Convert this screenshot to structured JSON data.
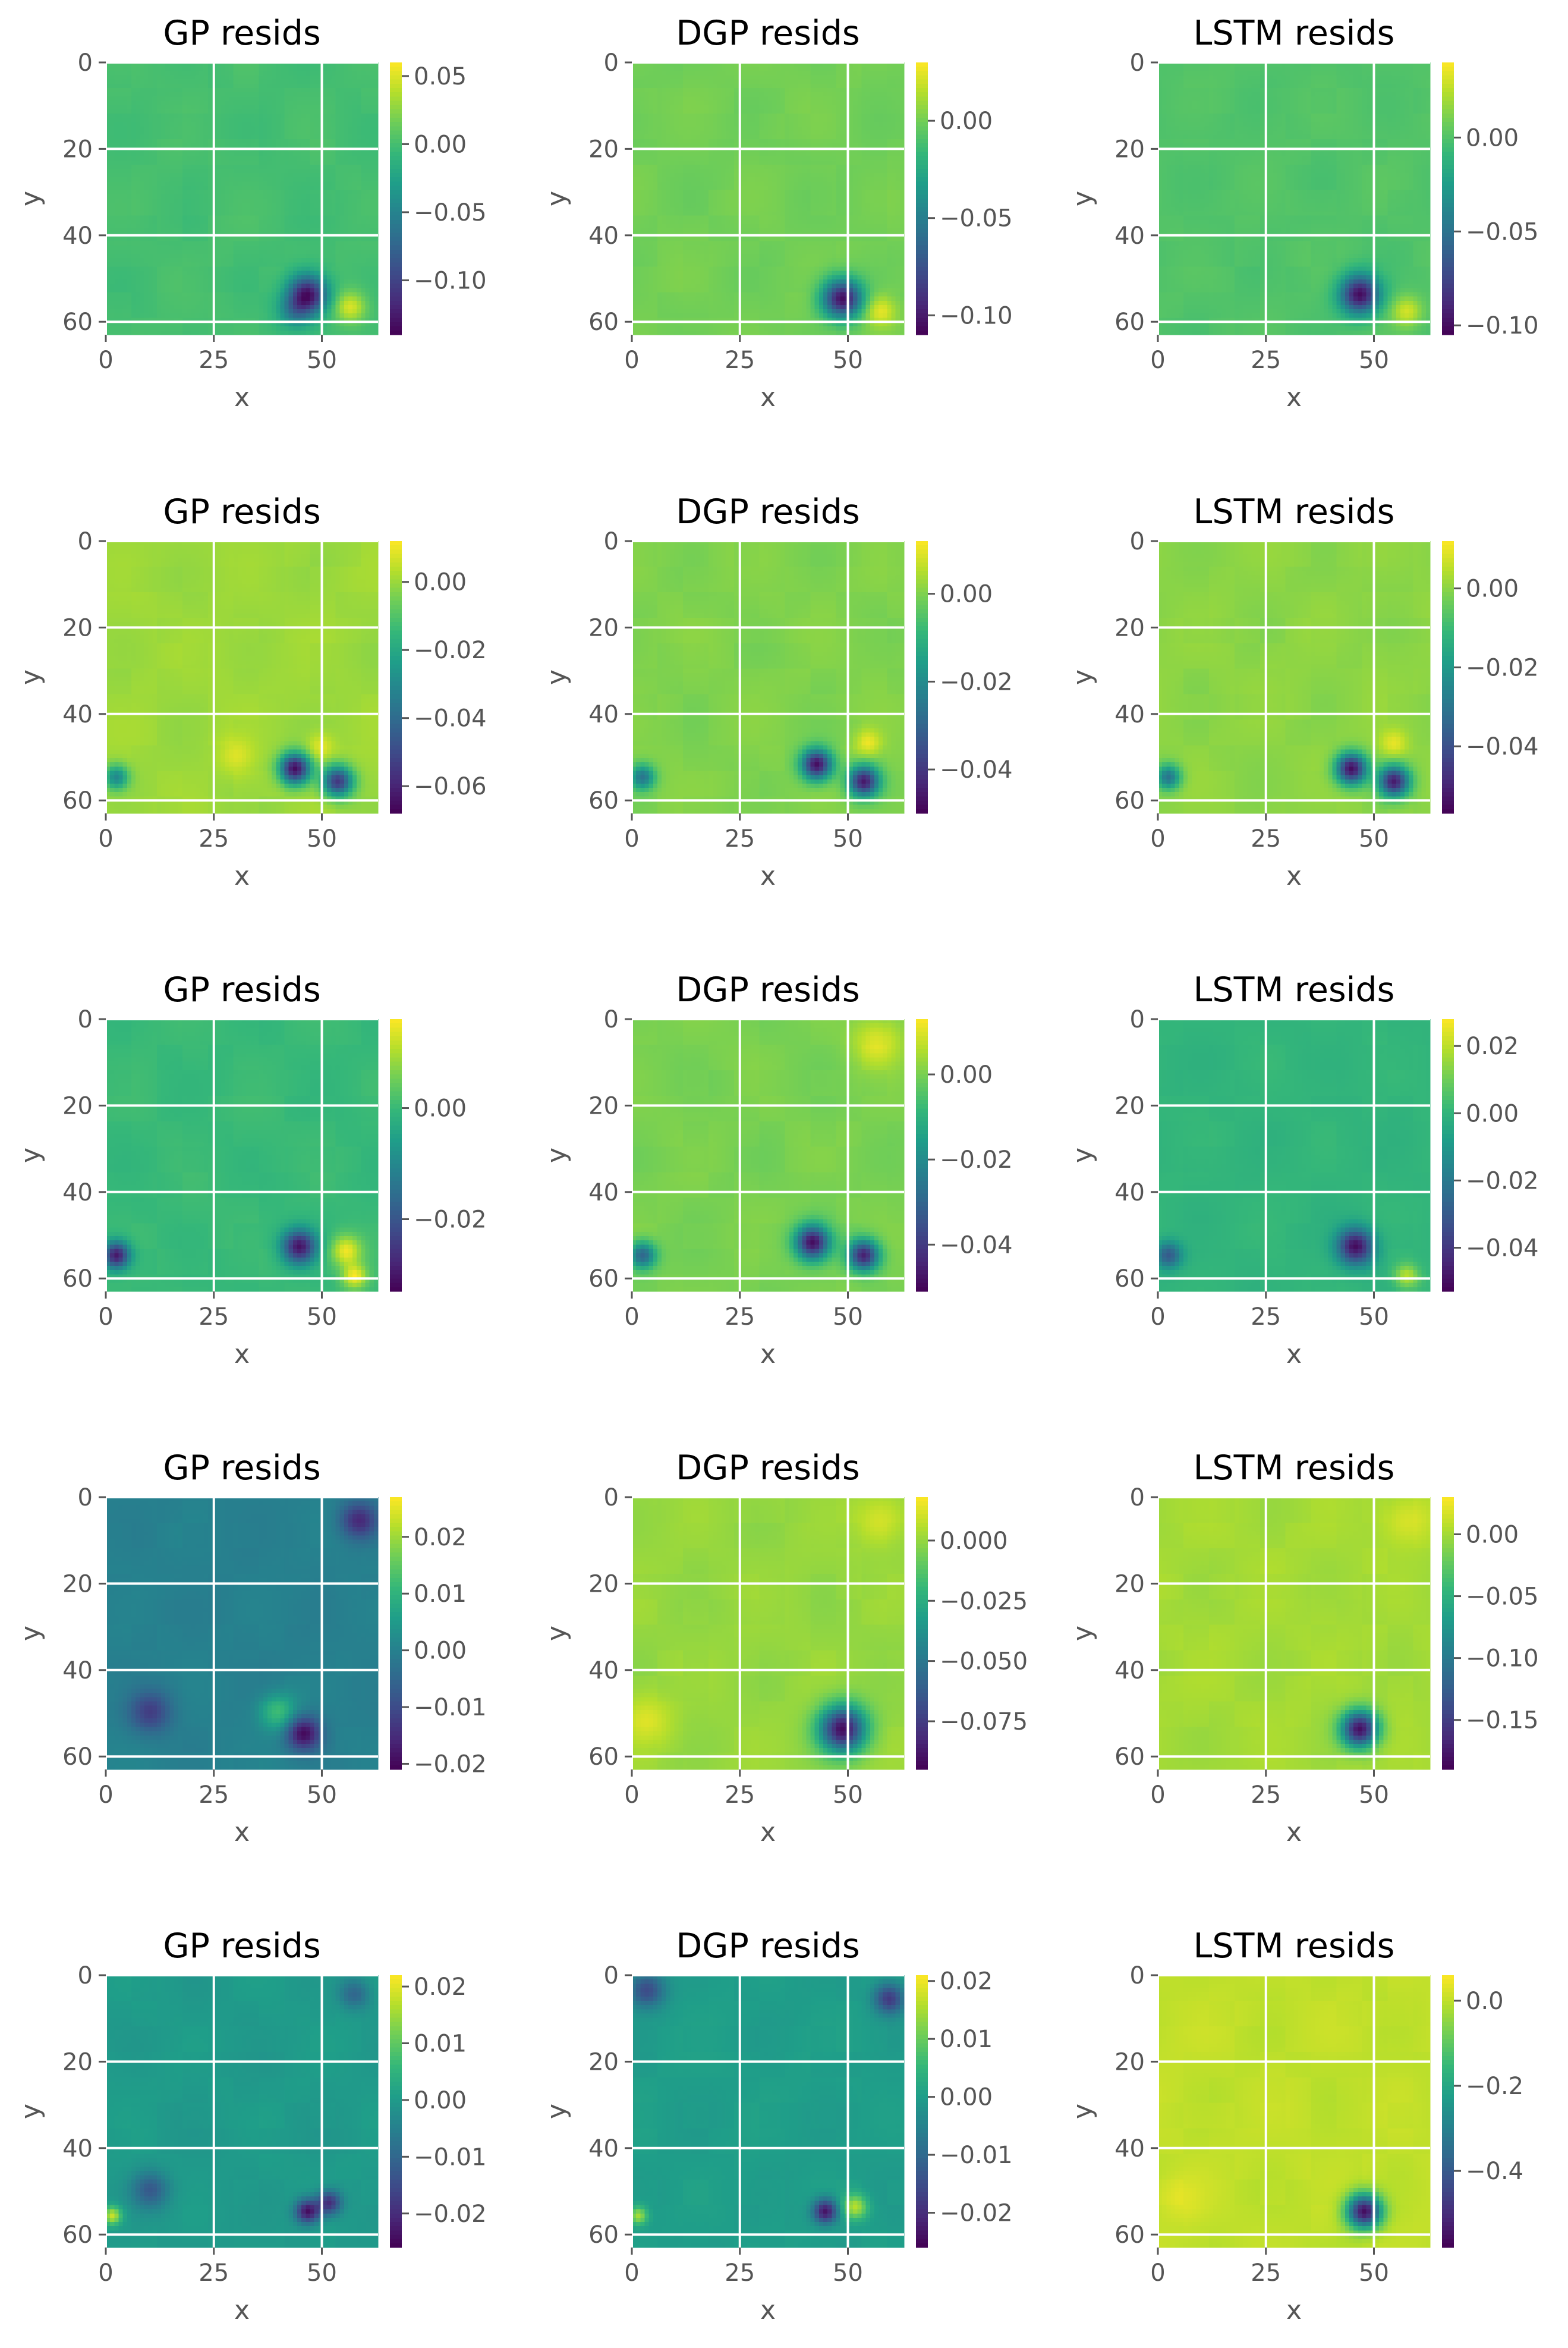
{
  "chart_data": [
    {
      "type": "heatmap",
      "title": "GP resids",
      "xlabel": "x",
      "ylabel": "y",
      "x_ticks": [
        "0",
        "25",
        "50"
      ],
      "y_ticks": [
        "0",
        "20",
        "40",
        "60"
      ],
      "x_range": [
        0,
        63
      ],
      "y_range": [
        0,
        63
      ],
      "grid": true,
      "colormap": "viridis",
      "colorbar": {
        "range": [
          -0.14,
          0.06
        ],
        "ticks": [
          {
            "v": 0.05,
            "label": "0.05"
          },
          {
            "v": 0.0,
            "label": "0.00"
          },
          {
            "v": -0.05,
            "label": "−0.05"
          },
          {
            "v": -0.1,
            "label": "−0.10"
          }
        ]
      },
      "anomalies": [
        {
          "x": 47,
          "y": 54,
          "sigma": 3.2,
          "a": -0.13
        },
        {
          "x": 57,
          "y": 57,
          "sigma": 2.5,
          "a": 0.05
        },
        {
          "x": 44,
          "y": 58,
          "sigma": 2.8,
          "a": -0.05
        }
      ]
    },
    {
      "type": "heatmap",
      "title": "DGP resids",
      "xlabel": "x",
      "ylabel": "y",
      "x_ticks": [
        "0",
        "25",
        "50"
      ],
      "y_ticks": [
        "0",
        "20",
        "40",
        "60"
      ],
      "x_range": [
        0,
        63
      ],
      "y_range": [
        0,
        63
      ],
      "grid": true,
      "colormap": "viridis",
      "colorbar": {
        "range": [
          -0.11,
          0.03
        ],
        "ticks": [
          {
            "v": 0.0,
            "label": "0.00"
          },
          {
            "v": -0.05,
            "label": "−0.05"
          },
          {
            "v": -0.1,
            "label": "−0.10"
          }
        ]
      },
      "anomalies": [
        {
          "x": 49,
          "y": 55,
          "sigma": 3.2,
          "a": -0.105
        },
        {
          "x": 58,
          "y": 58,
          "sigma": 2.5,
          "a": 0.025
        }
      ]
    },
    {
      "type": "heatmap",
      "title": "LSTM resids",
      "xlabel": "x",
      "ylabel": "y",
      "x_ticks": [
        "0",
        "25",
        "50"
      ],
      "y_ticks": [
        "0",
        "20",
        "40",
        "60"
      ],
      "x_range": [
        0,
        63
      ],
      "y_range": [
        0,
        63
      ],
      "grid": true,
      "colormap": "viridis",
      "colorbar": {
        "range": [
          -0.105,
          0.04
        ],
        "ticks": [
          {
            "v": 0.0,
            "label": "0.00"
          },
          {
            "v": -0.05,
            "label": "−0.05"
          },
          {
            "v": -0.1,
            "label": "−0.10"
          }
        ]
      },
      "anomalies": [
        {
          "x": 47,
          "y": 54,
          "sigma": 3.2,
          "a": -0.1
        },
        {
          "x": 58,
          "y": 58,
          "sigma": 2.5,
          "a": 0.03
        }
      ]
    },
    {
      "type": "heatmap",
      "title": "GP resids",
      "xlabel": "x",
      "ylabel": "y",
      "x_ticks": [
        "0",
        "25",
        "50"
      ],
      "y_ticks": [
        "0",
        "20",
        "40",
        "60"
      ],
      "x_range": [
        0,
        63
      ],
      "y_range": [
        0,
        63
      ],
      "grid": true,
      "colormap": "viridis",
      "colorbar": {
        "range": [
          -0.068,
          0.012
        ],
        "ticks": [
          {
            "v": 0.0,
            "label": "0.00"
          },
          {
            "v": -0.02,
            "label": "−0.02"
          },
          {
            "v": -0.04,
            "label": "−0.04"
          },
          {
            "v": -0.06,
            "label": "−0.06"
          }
        ]
      },
      "anomalies": [
        {
          "x": 44,
          "y": 53,
          "sigma": 2.5,
          "a": -0.065
        },
        {
          "x": 54,
          "y": 56,
          "sigma": 2.5,
          "a": -0.055
        },
        {
          "x": 50,
          "y": 48,
          "sigma": 2.2,
          "a": 0.01
        },
        {
          "x": 2,
          "y": 55,
          "sigma": 2.0,
          "a": -0.03
        },
        {
          "x": 30,
          "y": 50,
          "sigma": 3.0,
          "a": 0.008
        }
      ]
    },
    {
      "type": "heatmap",
      "title": "DGP resids",
      "xlabel": "x",
      "ylabel": "y",
      "x_ticks": [
        "0",
        "25",
        "50"
      ],
      "y_ticks": [
        "0",
        "20",
        "40",
        "60"
      ],
      "x_range": [
        0,
        63
      ],
      "y_range": [
        0,
        63
      ],
      "grid": true,
      "colormap": "viridis",
      "colorbar": {
        "range": [
          -0.05,
          0.012
        ],
        "ticks": [
          {
            "v": 0.0,
            "label": "0.00"
          },
          {
            "v": -0.02,
            "label": "−0.02"
          },
          {
            "v": -0.04,
            "label": "−0.04"
          }
        ]
      },
      "anomalies": [
        {
          "x": 43,
          "y": 52,
          "sigma": 2.5,
          "a": -0.048
        },
        {
          "x": 54,
          "y": 56,
          "sigma": 2.5,
          "a": -0.045
        },
        {
          "x": 55,
          "y": 47,
          "sigma": 2.2,
          "a": 0.01
        },
        {
          "x": 2,
          "y": 55,
          "sigma": 2.0,
          "a": -0.025
        }
      ]
    },
    {
      "type": "heatmap",
      "title": "LSTM resids",
      "xlabel": "x",
      "ylabel": "y",
      "x_ticks": [
        "0",
        "25",
        "50"
      ],
      "y_ticks": [
        "0",
        "20",
        "40",
        "60"
      ],
      "x_range": [
        0,
        63
      ],
      "y_range": [
        0,
        63
      ],
      "grid": true,
      "colormap": "viridis",
      "colorbar": {
        "range": [
          -0.057,
          0.012
        ],
        "ticks": [
          {
            "v": 0.0,
            "label": "0.00"
          },
          {
            "v": -0.02,
            "label": "−0.02"
          },
          {
            "v": -0.04,
            "label": "−0.04"
          }
        ]
      },
      "anomalies": [
        {
          "x": 45,
          "y": 53,
          "sigma": 2.5,
          "a": -0.055
        },
        {
          "x": 55,
          "y": 56,
          "sigma": 2.5,
          "a": -0.05
        },
        {
          "x": 55,
          "y": 47,
          "sigma": 2.2,
          "a": 0.01
        },
        {
          "x": 2,
          "y": 55,
          "sigma": 2.0,
          "a": -0.03
        }
      ]
    },
    {
      "type": "heatmap",
      "title": "GP resids",
      "xlabel": "x",
      "ylabel": "y",
      "x_ticks": [
        "0",
        "25",
        "50"
      ],
      "y_ticks": [
        "0",
        "20",
        "40",
        "60"
      ],
      "x_range": [
        0,
        63
      ],
      "y_range": [
        0,
        63
      ],
      "grid": true,
      "colormap": "viridis",
      "colorbar": {
        "range": [
          -0.033,
          0.016
        ],
        "ticks": [
          {
            "v": 0.0,
            "label": "0.00"
          },
          {
            "v": -0.02,
            "label": "−0.02"
          }
        ]
      },
      "anomalies": [
        {
          "x": 45,
          "y": 53,
          "sigma": 2.8,
          "a": -0.03
        },
        {
          "x": 56,
          "y": 54,
          "sigma": 2.5,
          "a": 0.015
        },
        {
          "x": 2,
          "y": 55,
          "sigma": 2.2,
          "a": -0.03
        },
        {
          "x": 58,
          "y": 60,
          "sigma": 2.0,
          "a": 0.015
        }
      ]
    },
    {
      "type": "heatmap",
      "title": "DGP resids",
      "xlabel": "x",
      "ylabel": "y",
      "x_ticks": [
        "0",
        "25",
        "50"
      ],
      "y_ticks": [
        "0",
        "20",
        "40",
        "60"
      ],
      "x_range": [
        0,
        63
      ],
      "y_range": [
        0,
        63
      ],
      "grid": true,
      "colormap": "viridis",
      "colorbar": {
        "range": [
          -0.051,
          0.013
        ],
        "ticks": [
          {
            "v": 0.0,
            "label": "0.00"
          },
          {
            "v": -0.02,
            "label": "−0.02"
          },
          {
            "v": -0.04,
            "label": "−0.04"
          }
        ]
      },
      "anomalies": [
        {
          "x": 42,
          "y": 52,
          "sigma": 2.8,
          "a": -0.048
        },
        {
          "x": 54,
          "y": 55,
          "sigma": 2.5,
          "a": -0.045
        },
        {
          "x": 57,
          "y": 5,
          "sigma": 4.0,
          "a": 0.01
        },
        {
          "x": 2,
          "y": 55,
          "sigma": 2.2,
          "a": -0.03
        }
      ]
    },
    {
      "type": "heatmap",
      "title": "LSTM resids",
      "xlabel": "x",
      "ylabel": "y",
      "x_ticks": [
        "0",
        "25",
        "50"
      ],
      "y_ticks": [
        "0",
        "20",
        "40",
        "60"
      ],
      "x_range": [
        0,
        63
      ],
      "y_range": [
        0,
        63
      ],
      "grid": true,
      "colormap": "viridis",
      "colorbar": {
        "range": [
          -0.053,
          0.028
        ],
        "ticks": [
          {
            "v": 0.02,
            "label": "0.02"
          },
          {
            "v": 0.0,
            "label": "0.00"
          },
          {
            "v": -0.02,
            "label": "−0.02"
          },
          {
            "v": -0.04,
            "label": "−0.04"
          }
        ]
      },
      "anomalies": [
        {
          "x": 46,
          "y": 53,
          "sigma": 3.0,
          "a": -0.05
        },
        {
          "x": 2,
          "y": 55,
          "sigma": 2.2,
          "a": -0.03
        },
        {
          "x": 58,
          "y": 60,
          "sigma": 2.0,
          "a": 0.02
        }
      ]
    },
    {
      "type": "heatmap",
      "title": "GP resids",
      "xlabel": "x",
      "ylabel": "y",
      "x_ticks": [
        "0",
        "25",
        "50"
      ],
      "y_ticks": [
        "0",
        "20",
        "40",
        "60"
      ],
      "x_range": [
        0,
        63
      ],
      "y_range": [
        0,
        63
      ],
      "grid": true,
      "colormap": "viridis",
      "colorbar": {
        "range": [
          -0.021,
          0.027
        ],
        "ticks": [
          {
            "v": 0.02,
            "label": "0.02"
          },
          {
            "v": 0.01,
            "label": "0.01"
          },
          {
            "v": 0.0,
            "label": "0.00"
          },
          {
            "v": -0.01,
            "label": "−0.01"
          },
          {
            "v": -0.02,
            "label": "−0.02"
          }
        ]
      },
      "anomalies": [
        {
          "x": 46,
          "y": 55,
          "sigma": 2.8,
          "a": -0.02
        },
        {
          "x": 59,
          "y": 5,
          "sigma": 3.0,
          "a": -0.015
        },
        {
          "x": 10,
          "y": 50,
          "sigma": 3.5,
          "a": -0.012
        },
        {
          "x": 40,
          "y": 50,
          "sigma": 3.0,
          "a": 0.012
        }
      ]
    },
    {
      "type": "heatmap",
      "title": "DGP resids",
      "xlabel": "x",
      "ylabel": "y",
      "x_ticks": [
        "0",
        "25",
        "50"
      ],
      "y_ticks": [
        "0",
        "20",
        "40",
        "60"
      ],
      "x_range": [
        0,
        63
      ],
      "y_range": [
        0,
        63
      ],
      "grid": true,
      "colormap": "viridis",
      "colorbar": {
        "range": [
          -0.095,
          0.018
        ],
        "ticks": [
          {
            "v": 0.0,
            "label": "0.000"
          },
          {
            "v": -0.025,
            "label": "−0.025"
          },
          {
            "v": -0.05,
            "label": "−0.050"
          },
          {
            "v": -0.075,
            "label": "−0.075"
          }
        ]
      },
      "anomalies": [
        {
          "x": 49,
          "y": 54,
          "sigma": 3.8,
          "a": -0.09
        },
        {
          "x": 58,
          "y": 5,
          "sigma": 4.0,
          "a": 0.012
        },
        {
          "x": 3,
          "y": 52,
          "sigma": 4.0,
          "a": 0.012
        }
      ]
    },
    {
      "type": "heatmap",
      "title": "LSTM resids",
      "xlabel": "x",
      "ylabel": "y",
      "x_ticks": [
        "0",
        "25",
        "50"
      ],
      "y_ticks": [
        "0",
        "20",
        "40",
        "60"
      ],
      "x_range": [
        0,
        63
      ],
      "y_range": [
        0,
        63
      ],
      "grid": true,
      "colormap": "viridis",
      "colorbar": {
        "range": [
          -0.19,
          0.03
        ],
        "ticks": [
          {
            "v": 0.0,
            "label": "0.00"
          },
          {
            "v": -0.05,
            "label": "−0.05"
          },
          {
            "v": -0.1,
            "label": "−0.10"
          },
          {
            "v": -0.15,
            "label": "−0.15"
          }
        ]
      },
      "anomalies": [
        {
          "x": 47,
          "y": 54,
          "sigma": 3.0,
          "a": -0.18
        },
        {
          "x": 58,
          "y": 5,
          "sigma": 4.0,
          "a": 0.02
        }
      ]
    },
    {
      "type": "heatmap",
      "title": "GP resids",
      "xlabel": "x",
      "ylabel": "y",
      "x_ticks": [
        "0",
        "25",
        "50"
      ],
      "y_ticks": [
        "0",
        "20",
        "40",
        "60"
      ],
      "x_range": [
        0,
        63
      ],
      "y_range": [
        0,
        63
      ],
      "grid": true,
      "colormap": "viridis",
      "colorbar": {
        "range": [
          -0.026,
          0.022
        ],
        "ticks": [
          {
            "v": 0.02,
            "label": "0.02"
          },
          {
            "v": 0.01,
            "label": "0.01"
          },
          {
            "v": 0.0,
            "label": "0.00"
          },
          {
            "v": -0.01,
            "label": "−0.01"
          },
          {
            "v": -0.02,
            "label": "−0.02"
          }
        ]
      },
      "anomalies": [
        {
          "x": 47,
          "y": 55,
          "sigma": 2.0,
          "a": -0.024
        },
        {
          "x": 52,
          "y": 53,
          "sigma": 2.0,
          "a": -0.02
        },
        {
          "x": 10,
          "y": 50,
          "sigma": 3.0,
          "a": -0.012
        },
        {
          "x": 1,
          "y": 56,
          "sigma": 1.5,
          "a": 0.018
        },
        {
          "x": 58,
          "y": 4,
          "sigma": 2.5,
          "a": -0.01
        }
      ]
    },
    {
      "type": "heatmap",
      "title": "DGP resids",
      "xlabel": "x",
      "ylabel": "y",
      "x_ticks": [
        "0",
        "25",
        "50"
      ],
      "y_ticks": [
        "0",
        "20",
        "40",
        "60"
      ],
      "x_range": [
        0,
        63
      ],
      "y_range": [
        0,
        63
      ],
      "grid": true,
      "colormap": "viridis",
      "colorbar": {
        "range": [
          -0.026,
          0.021
        ],
        "ticks": [
          {
            "v": 0.02,
            "label": "0.02"
          },
          {
            "v": 0.01,
            "label": "0.01"
          },
          {
            "v": 0.0,
            "label": "0.00"
          },
          {
            "v": -0.01,
            "label": "−0.01"
          },
          {
            "v": -0.02,
            "label": "−0.02"
          }
        ]
      },
      "anomalies": [
        {
          "x": 45,
          "y": 55,
          "sigma": 2.0,
          "a": -0.024
        },
        {
          "x": 52,
          "y": 54,
          "sigma": 2.0,
          "a": 0.016
        },
        {
          "x": 60,
          "y": 5,
          "sigma": 2.5,
          "a": -0.018
        },
        {
          "x": 3,
          "y": 3,
          "sigma": 3.0,
          "a": -0.015
        },
        {
          "x": 1,
          "y": 56,
          "sigma": 1.5,
          "a": 0.015
        }
      ]
    },
    {
      "type": "heatmap",
      "title": "LSTM resids",
      "xlabel": "x",
      "ylabel": "y",
      "x_ticks": [
        "0",
        "25",
        "50"
      ],
      "y_ticks": [
        "0",
        "20",
        "40",
        "60"
      ],
      "x_range": [
        0,
        63
      ],
      "y_range": [
        0,
        63
      ],
      "grid": true,
      "colormap": "viridis",
      "colorbar": {
        "range": [
          -0.58,
          0.06
        ],
        "ticks": [
          {
            "v": 0.0,
            "label": "0.0"
          },
          {
            "v": -0.2,
            "label": "−0.2"
          },
          {
            "v": -0.4,
            "label": "−0.4"
          }
        ]
      },
      "anomalies": [
        {
          "x": 48,
          "y": 55,
          "sigma": 2.8,
          "a": -0.55
        },
        {
          "x": 5,
          "y": 52,
          "sigma": 4.0,
          "a": 0.03
        }
      ]
    }
  ]
}
